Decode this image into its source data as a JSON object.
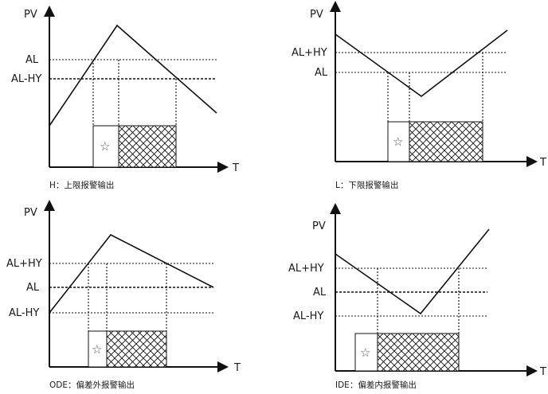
{
  "labels": {
    "pv": "PV",
    "t": "T",
    "al": "AL",
    "al_hy_minus": "AL-HY",
    "al_hy_plus": "AL+HY",
    "star": "☆"
  },
  "captions": {
    "h": "H：上限报警输出",
    "l": "L：下限报警输出",
    "ode": "ODE：偏差外报警输出",
    "ide": "IDE：偏差内报警输出"
  }
}
